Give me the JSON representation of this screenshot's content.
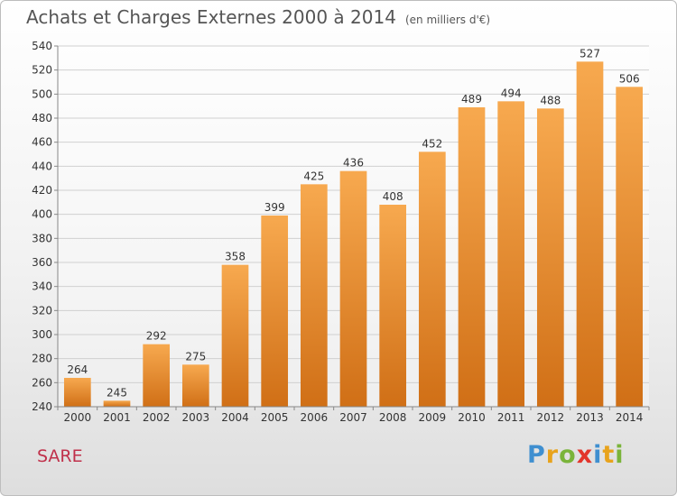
{
  "header": {
    "title": "Achats et Charges Externes 2000 à 2014",
    "unit": "(en milliers d'€)"
  },
  "footer": {
    "location": "SARE",
    "logo": "Proxiti"
  },
  "colors": {
    "bar_top": "#f7a94f",
    "bar_bottom": "#d06f16",
    "grid": "#d0d0d0",
    "location": "#c0304a"
  },
  "chart_data": {
    "type": "bar",
    "title": "Achats et Charges Externes 2000 à 2014",
    "subtitle": "(en milliers d'€)",
    "categories": [
      "2000",
      "2001",
      "2002",
      "2003",
      "2004",
      "2005",
      "2006",
      "2007",
      "2008",
      "2009",
      "2010",
      "2011",
      "2012",
      "2013",
      "2014"
    ],
    "values": [
      264,
      245,
      292,
      275,
      358,
      399,
      425,
      436,
      408,
      452,
      489,
      494,
      488,
      527,
      506
    ],
    "ylim": [
      240,
      540
    ],
    "yticks": [
      240,
      260,
      280,
      300,
      320,
      340,
      360,
      380,
      400,
      420,
      440,
      460,
      480,
      500,
      520,
      540
    ],
    "grid": true,
    "data_labels": true
  }
}
